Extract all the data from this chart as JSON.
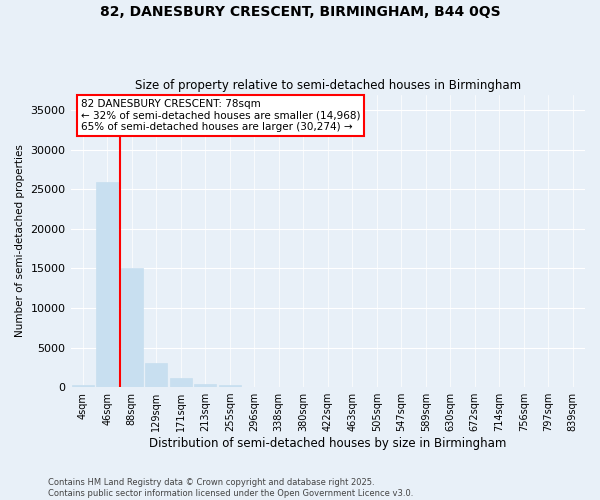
{
  "title1": "82, DANESBURY CRESCENT, BIRMINGHAM, B44 0QS",
  "title2": "Size of property relative to semi-detached houses in Birmingham",
  "xlabel": "Distribution of semi-detached houses by size in Birmingham",
  "ylabel": "Number of semi-detached properties",
  "footnote": "Contains HM Land Registry data © Crown copyright and database right 2025.\nContains public sector information licensed under the Open Government Licence v3.0.",
  "bar_labels": [
    "4sqm",
    "46sqm",
    "88sqm",
    "129sqm",
    "171sqm",
    "213sqm",
    "255sqm",
    "296sqm",
    "338sqm",
    "380sqm",
    "422sqm",
    "463sqm",
    "505sqm",
    "547sqm",
    "589sqm",
    "630sqm",
    "672sqm",
    "714sqm",
    "756sqm",
    "797sqm",
    "839sqm"
  ],
  "bar_values": [
    250,
    26000,
    15000,
    3100,
    1200,
    370,
    220,
    30,
    5,
    2,
    2,
    1,
    1,
    1,
    0,
    0,
    0,
    0,
    0,
    0,
    0
  ],
  "bar_color": "#c8dff0",
  "bar_edgecolor": "#c8dff0",
  "background_color": "#e8f0f8",
  "red_line_x": 1.5,
  "annotation_text": "82 DANESBURY CRESCENT: 78sqm\n← 32% of semi-detached houses are smaller (14,968)\n65% of semi-detached houses are larger (30,274) →",
  "annotation_box_color": "white",
  "annotation_box_edgecolor": "red",
  "ylim": [
    0,
    37000
  ],
  "yticks": [
    0,
    5000,
    10000,
    15000,
    20000,
    25000,
    30000,
    35000
  ]
}
